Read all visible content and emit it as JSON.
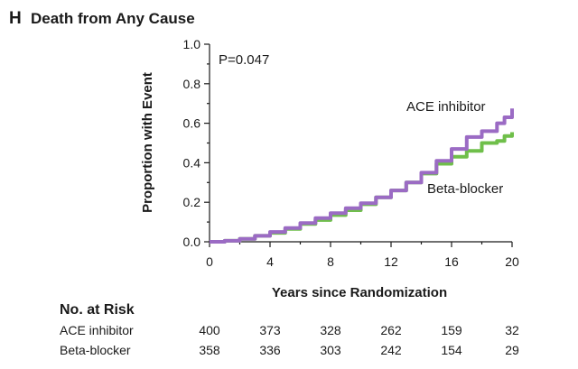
{
  "panel": {
    "letter": "H",
    "title": "Death from Any Cause"
  },
  "chart_data": {
    "type": "line",
    "title": "Death from Any Cause",
    "xlabel": "Years since Randomization",
    "ylabel": "Proportion with Event",
    "xlim": [
      0,
      20
    ],
    "ylim": [
      0,
      1.0
    ],
    "xticks": [
      0,
      4,
      8,
      12,
      16,
      20
    ],
    "xtick_labels": [
      "0",
      "4",
      "8",
      "12",
      "16",
      "20"
    ],
    "yticks": [
      0,
      0.2,
      0.4,
      0.6,
      0.8,
      1.0
    ],
    "ytick_labels": [
      "0.0",
      "0.2",
      "0.4",
      "0.6",
      "0.8",
      "1.0"
    ],
    "annotation": "P=0.047",
    "series": [
      {
        "name": "ACE inhibitor",
        "color": "#9b6bc4",
        "x": [
          0,
          1,
          2,
          3,
          4,
          5,
          6,
          7,
          8,
          9,
          10,
          11,
          12,
          13,
          14,
          15,
          16,
          17,
          18,
          19,
          19.5,
          20
        ],
        "y": [
          0,
          0.005,
          0.015,
          0.03,
          0.05,
          0.07,
          0.095,
          0.12,
          0.145,
          0.17,
          0.195,
          0.225,
          0.26,
          0.3,
          0.35,
          0.41,
          0.47,
          0.53,
          0.56,
          0.6,
          0.63,
          0.675
        ]
      },
      {
        "name": "Beta-blocker",
        "color": "#6fbf4a",
        "x": [
          0,
          1,
          2,
          3,
          4,
          5,
          6,
          7,
          8,
          9,
          10,
          11,
          12,
          13,
          14,
          15,
          16,
          17,
          18,
          19,
          19.5,
          20
        ],
        "y": [
          0,
          0.005,
          0.015,
          0.03,
          0.045,
          0.065,
          0.09,
          0.11,
          0.135,
          0.16,
          0.19,
          0.225,
          0.26,
          0.3,
          0.345,
          0.395,
          0.43,
          0.46,
          0.5,
          0.51,
          0.535,
          0.555
        ]
      }
    ]
  },
  "risk_table": {
    "title": "No. at Risk",
    "times": [
      0,
      4,
      8,
      12,
      16,
      20
    ],
    "rows": [
      {
        "label": "ACE inhibitor",
        "values": [
          "400",
          "373",
          "328",
          "262",
          "159",
          "32"
        ]
      },
      {
        "label": "Beta-blocker",
        "values": [
          "358",
          "336",
          "303",
          "242",
          "154",
          "29"
        ]
      }
    ]
  }
}
